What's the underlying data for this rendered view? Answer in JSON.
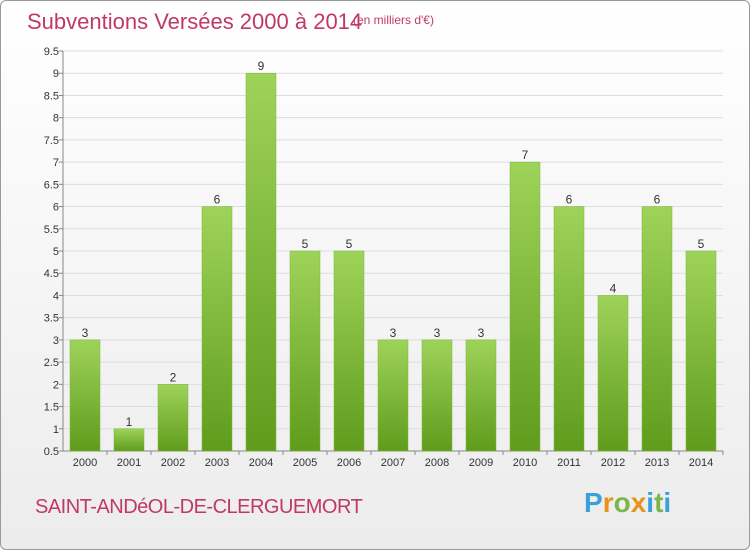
{
  "header": {
    "title": "Subventions Versées 2000 à 2014",
    "subtitle": "(en milliers d'€)"
  },
  "footer": {
    "commune": "SAINT-ANDéOL-DE-CLERGUEMORT",
    "logo_letters": [
      "P",
      "r",
      "o",
      "x",
      "i",
      "t",
      "i"
    ],
    "logo_colors": [
      "#3aa0d8",
      "#e8941a",
      "#7ab648",
      "#e8941a",
      "#3aa0d8",
      "#7ab648",
      "#3aa0d8"
    ]
  },
  "colors": {
    "bar_light": "#9ed35a",
    "bar_dark": "#5f9c1c",
    "accent": "#c0386a"
  },
  "chart_data": {
    "type": "bar",
    "categories": [
      "2000",
      "2001",
      "2002",
      "2003",
      "2004",
      "2005",
      "2006",
      "2007",
      "2008",
      "2009",
      "2010",
      "2011",
      "2012",
      "2013",
      "2014"
    ],
    "values": [
      3,
      1,
      2,
      6,
      9,
      5,
      5,
      3,
      3,
      3,
      7,
      6,
      4,
      6,
      5
    ],
    "data_labels": [
      "3",
      "1",
      "2",
      "6",
      "9",
      "5",
      "5",
      "3",
      "3",
      "3",
      "7",
      "6",
      "4",
      "6",
      "5"
    ],
    "ylim": [
      0.5,
      9.5
    ],
    "yticks": [
      "0.5",
      "1",
      "1.5",
      "2",
      "2.5",
      "3",
      "3.5",
      "4",
      "4.5",
      "5",
      "5.5",
      "6",
      "6.5",
      "7",
      "7.5",
      "8",
      "8.5",
      "9",
      "9.5"
    ],
    "ytick_values": [
      0.5,
      1,
      1.5,
      2,
      2.5,
      3,
      3.5,
      4,
      4.5,
      5,
      5.5,
      6,
      6.5,
      7,
      7.5,
      8,
      8.5,
      9,
      9.5
    ],
    "grid": true,
    "title": "Subventions Versées 2000 à 2014",
    "xlabel": "",
    "ylabel": ""
  }
}
